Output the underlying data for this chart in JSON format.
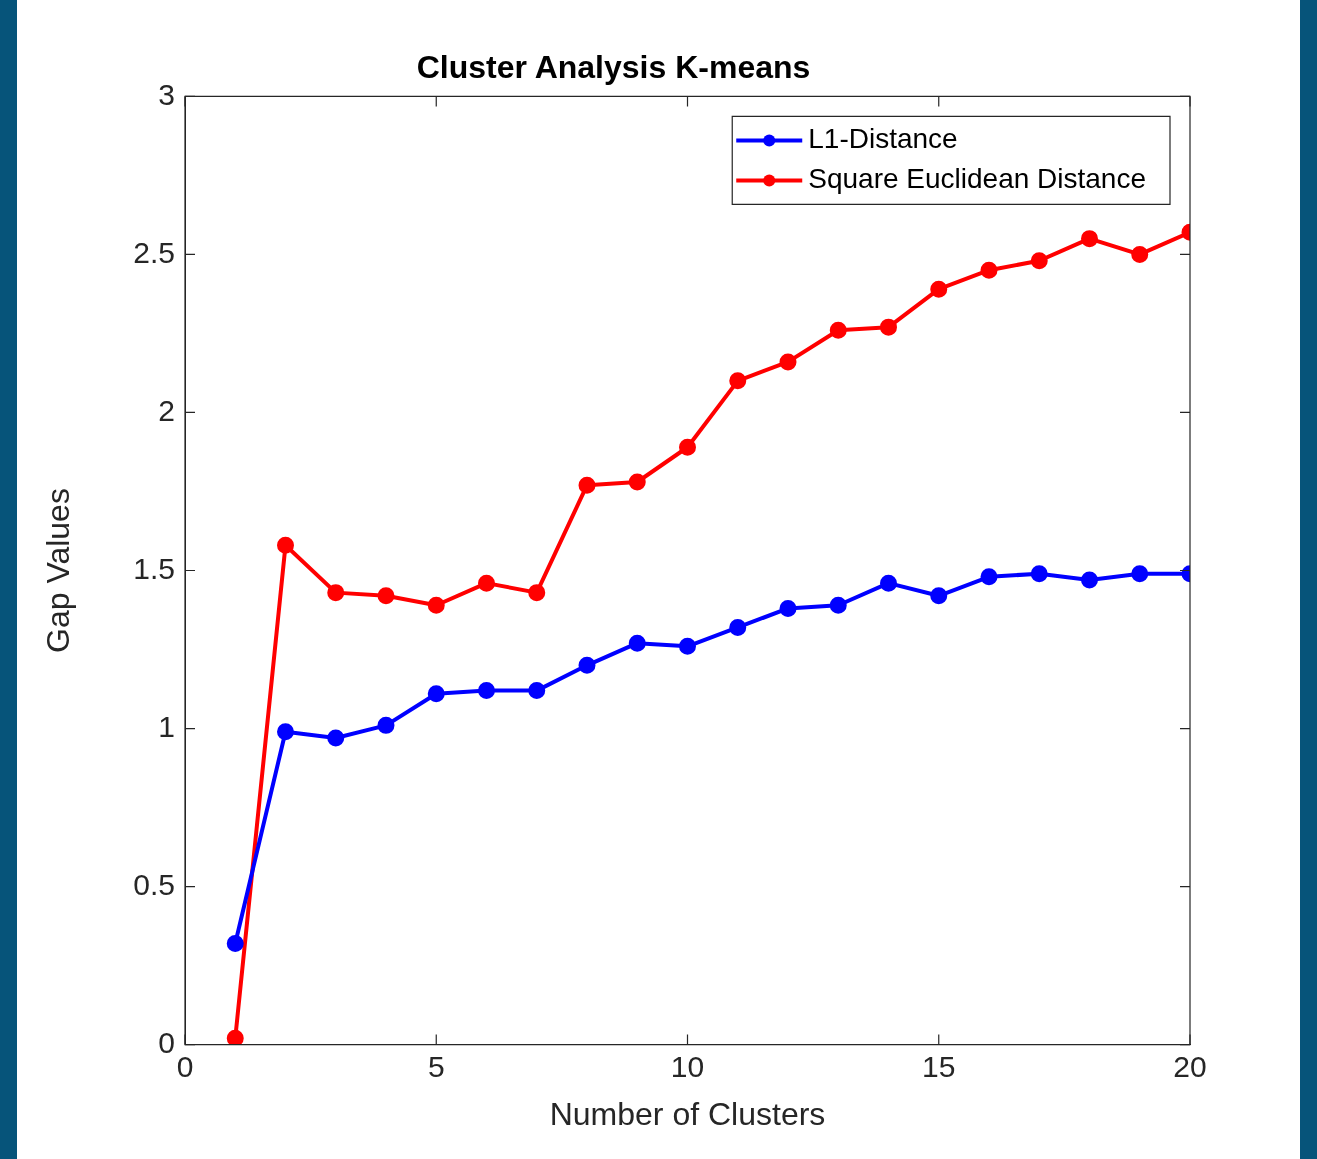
{
  "chart_data": {
    "type": "line",
    "title": "Cluster Analysis K-means",
    "xlabel": "Number of Clusters",
    "ylabel": "Gap Values",
    "x": [
      1,
      2,
      3,
      4,
      5,
      6,
      7,
      8,
      9,
      10,
      11,
      12,
      13,
      14,
      15,
      16,
      17,
      18,
      19,
      20
    ],
    "series": [
      {
        "name": "L1-Distance",
        "color": "#0000ff",
        "values": [
          0.32,
          0.99,
          0.97,
          1.01,
          1.11,
          1.12,
          1.12,
          1.2,
          1.27,
          1.26,
          1.32,
          1.38,
          1.39,
          1.46,
          1.42,
          1.48,
          1.49,
          1.47,
          1.49,
          1.49
        ]
      },
      {
        "name": "Square Euclidean Distance",
        "color": "#ff0000",
        "values": [
          0.02,
          1.58,
          1.43,
          1.42,
          1.39,
          1.46,
          1.43,
          1.77,
          1.78,
          1.89,
          2.1,
          2.16,
          2.26,
          2.27,
          2.39,
          2.45,
          2.48,
          2.55,
          2.5,
          2.57
        ]
      }
    ],
    "xlim": [
      0,
      20
    ],
    "xticks": [
      0,
      5,
      10,
      15,
      20
    ],
    "ylim": [
      0,
      3
    ],
    "yticks": [
      0,
      0.5,
      1,
      1.5,
      2,
      2.5,
      3
    ],
    "legend": "top right",
    "marker": "circle",
    "line_style": "solid"
  }
}
